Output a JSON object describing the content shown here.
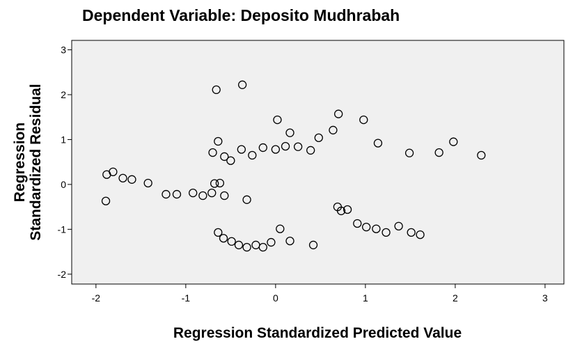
{
  "chart_data": {
    "type": "scatter",
    "title": "Dependent Variable: Deposito Mudhrabah",
    "x_label": "Regression Standardized Predicted Value",
    "y_label": [
      "Regression",
      "Standardized Residual"
    ],
    "xlim": [
      -2.27,
      3.21
    ],
    "ylim": [
      -2.22,
      3.21
    ],
    "xticks": [
      -2,
      -1,
      0,
      1,
      2,
      3
    ],
    "yticks": [
      -2,
      -1,
      0,
      1,
      2,
      3
    ],
    "color": "#000000",
    "background": "#f0f0f0",
    "series": [
      {
        "name": "Residual",
        "x": [
          -1.89,
          -1.88,
          -1.81,
          -1.7,
          -1.6,
          -1.42,
          -1.22,
          -1.1,
          -0.92,
          -0.81,
          -0.71,
          -0.68,
          -0.62,
          -0.57,
          -0.32,
          -0.7,
          -0.64,
          -0.66,
          -0.37,
          -0.57,
          -0.5,
          -0.38,
          -0.26,
          -0.14,
          0,
          0.02,
          0.11,
          0.16,
          0.25,
          0.39,
          0.48,
          0.64,
          0.7,
          0.98,
          1.14,
          1.49,
          1.82,
          1.98,
          2.29,
          -0.64,
          -0.58,
          -0.49,
          -0.41,
          -0.32,
          -0.22,
          -0.14,
          -0.05,
          0.05,
          0.16,
          0.42,
          0.69,
          0.73,
          0.8,
          0.91,
          1.01,
          1.12,
          1.23,
          1.37,
          1.51,
          1.61
        ],
        "values": [
          -0.37,
          0.22,
          0.28,
          0.14,
          0.11,
          0.03,
          -0.22,
          -0.22,
          -0.19,
          -0.25,
          -0.19,
          0.02,
          0.03,
          -0.25,
          -0.34,
          0.71,
          0.96,
          2.11,
          2.22,
          0.62,
          0.53,
          0.78,
          0.65,
          0.82,
          0.78,
          1.44,
          0.85,
          1.15,
          0.84,
          0.76,
          1.04,
          1.21,
          1.57,
          1.44,
          0.92,
          0.7,
          0.71,
          0.95,
          0.65,
          -1.07,
          -1.2,
          -1.27,
          -1.35,
          -1.4,
          -1.35,
          -1.4,
          -1.29,
          -0.99,
          -1.26,
          -1.35,
          -0.5,
          -0.59,
          -0.56,
          -0.87,
          -0.95,
          -0.99,
          -1.07,
          -0.93,
          -1.07,
          -1.12
        ]
      }
    ]
  }
}
